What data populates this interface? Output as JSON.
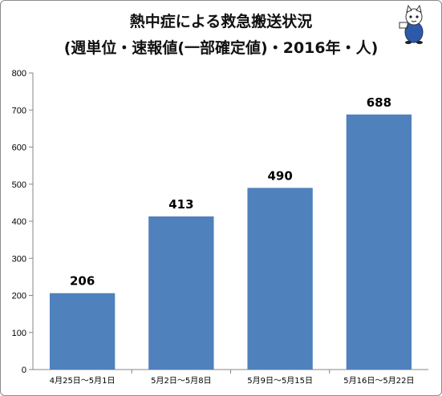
{
  "chart_data": {
    "type": "bar",
    "title": "熱中症による救急搬送状況",
    "subtitle": "(週単位・速報値(一部確定値)・2016年・人)",
    "categories": [
      "4月25日～5月1日",
      "5月2日～5月8日",
      "5月9日～5月15日",
      "5月16日～5月22日"
    ],
    "values": [
      206,
      413,
      490,
      688
    ],
    "data_labels": [
      "206",
      "413",
      "490",
      "688"
    ],
    "ylim": [
      0,
      800
    ],
    "yticks": [
      "0",
      "100",
      "200",
      "300",
      "400",
      "500",
      "600",
      "700",
      "800"
    ],
    "grid": false,
    "legend": "none",
    "colors": {
      "bar": "#4f81bd",
      "axis": "#868686"
    }
  },
  "icons": {
    "mascot": "cat-mascot-icon"
  }
}
